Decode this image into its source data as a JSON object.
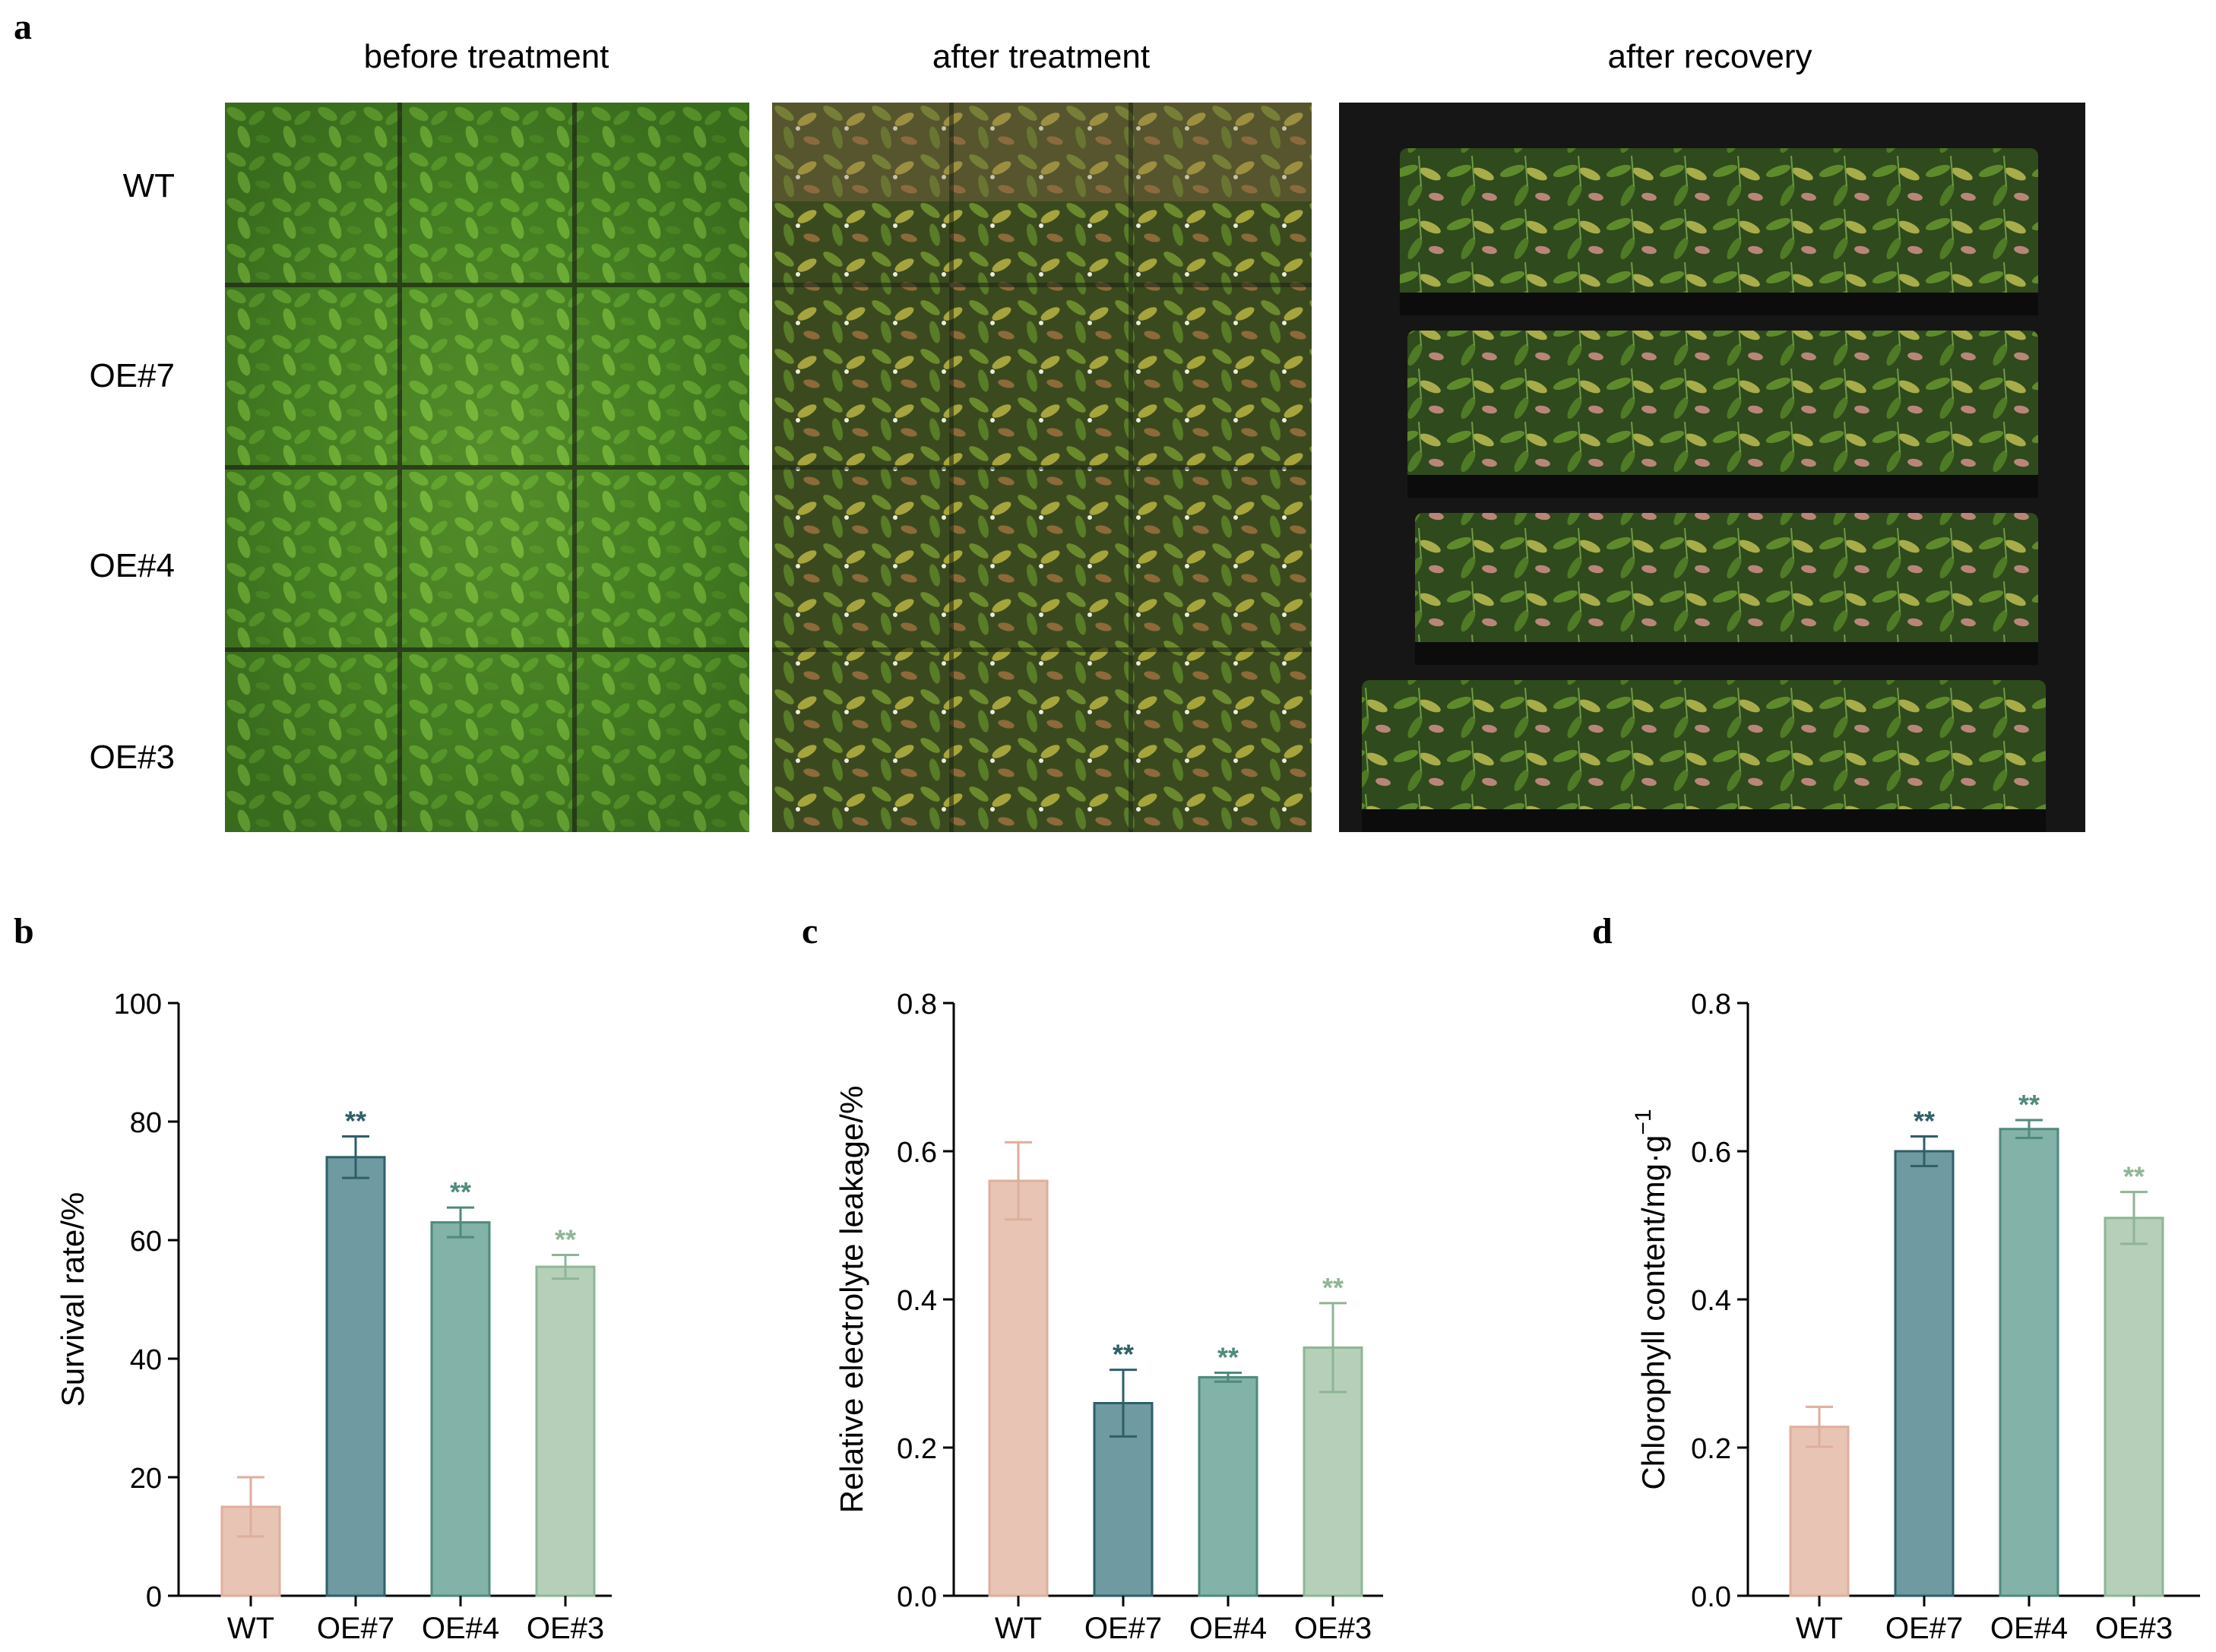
{
  "panel_labels": {
    "a": "a",
    "b": "b",
    "c": "c",
    "d": "d"
  },
  "photo_titles": [
    "before treatment",
    "after treatment",
    "after recovery"
  ],
  "row_labels": [
    "WT",
    "OE#7",
    "OE#4",
    "OE#3"
  ],
  "colors": {
    "WT": "#e8c4b5",
    "OE#7": "#6f9aa1",
    "OE#4": "#82b2a8",
    "OE#3": "#b5cfb9",
    "WT_stroke": "#deae9c",
    "OE#7_stroke": "#2f5f68",
    "OE#4_stroke": "#4f8a7c",
    "OE#3_stroke": "#8fb595"
  },
  "chart_data": [
    {
      "panel": "b",
      "type": "bar",
      "categories": [
        "WT",
        "OE#7",
        "OE#4",
        "OE#3"
      ],
      "values": [
        15,
        74,
        63,
        55.5
      ],
      "errors": [
        5,
        3.5,
        2.5,
        2
      ],
      "significance": [
        "",
        "**",
        "**",
        "**"
      ],
      "ylabel": "Survival rate/%",
      "ylim": [
        0,
        100
      ],
      "yticks": [
        0,
        20,
        40,
        60,
        80,
        100
      ],
      "ytick_labels": [
        "0",
        "20",
        "40",
        "60",
        "80",
        "100"
      ]
    },
    {
      "panel": "c",
      "type": "bar",
      "categories": [
        "WT",
        "OE#7",
        "OE#4",
        "OE#3"
      ],
      "values": [
        0.56,
        0.26,
        0.295,
        0.335
      ],
      "errors": [
        0.052,
        0.045,
        0.006,
        0.06
      ],
      "significance": [
        "",
        "**",
        "**",
        "**"
      ],
      "ylabel": "Relative electrolyte leakage/%",
      "ylim": [
        0,
        0.8
      ],
      "yticks": [
        0,
        0.2,
        0.4,
        0.6,
        0.8
      ],
      "ytick_labels": [
        "0.0",
        "0.2",
        "0.4",
        "0.6",
        "0.8"
      ]
    },
    {
      "panel": "d",
      "type": "bar",
      "categories": [
        "WT",
        "OE#7",
        "OE#4",
        "OE#3"
      ],
      "values": [
        0.228,
        0.6,
        0.63,
        0.51
      ],
      "errors": [
        0.027,
        0.02,
        0.012,
        0.035
      ],
      "significance": [
        "",
        "**",
        "**",
        "**"
      ],
      "ylabel": "Chlorophyll content/mg·g",
      "ylabel_superscript": "−1",
      "ylim": [
        0,
        0.8
      ],
      "yticks": [
        0,
        0.2,
        0.4,
        0.6,
        0.8
      ],
      "ytick_labels": [
        "0.0",
        "0.2",
        "0.4",
        "0.6",
        "0.8"
      ]
    }
  ]
}
